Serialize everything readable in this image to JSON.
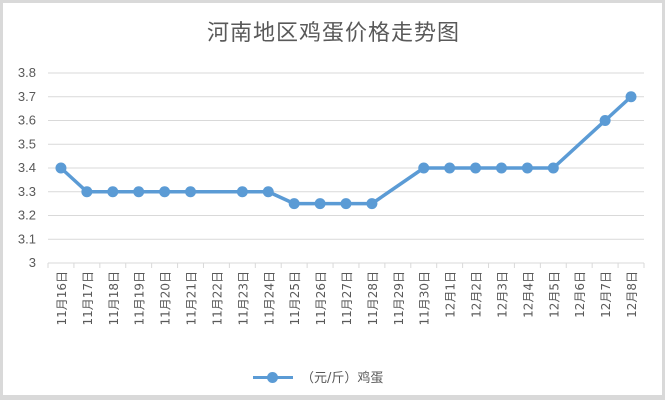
{
  "chart_data": {
    "type": "line",
    "title": "河南地区鸡蛋价格走势图",
    "xlabel": "",
    "ylabel": "",
    "ylim": [
      3,
      3.8
    ],
    "yticks": [
      "3",
      "3.1",
      "3.2",
      "3.3",
      "3.4",
      "3.5",
      "3.6",
      "3.7",
      "3.8"
    ],
    "grid": true,
    "legend_position": "bottom",
    "categories": [
      "11月16日",
      "11月17日",
      "11月18日",
      "11月19日",
      "11月20日",
      "11月21日",
      "11月22日",
      "11月23日",
      "11月24日",
      "11月25日",
      "11月26日",
      "11月27日",
      "11月28日",
      "11月29日",
      "11月30日",
      "12月1日",
      "12月2日",
      "12月3日",
      "12月4日",
      "12月5日",
      "12月6日",
      "12月7日",
      "12月8日"
    ],
    "series": [
      {
        "name": "（元/斤）鸡蛋",
        "color": "#5b9bd5",
        "values": [
          3.4,
          3.3,
          3.3,
          3.3,
          3.3,
          3.3,
          null,
          3.3,
          3.3,
          3.25,
          3.25,
          3.25,
          3.25,
          null,
          3.4,
          3.4,
          3.4,
          3.4,
          3.4,
          3.4,
          null,
          3.6,
          3.7
        ]
      }
    ]
  },
  "legend": {
    "label": "（元/斤）鸡蛋"
  }
}
